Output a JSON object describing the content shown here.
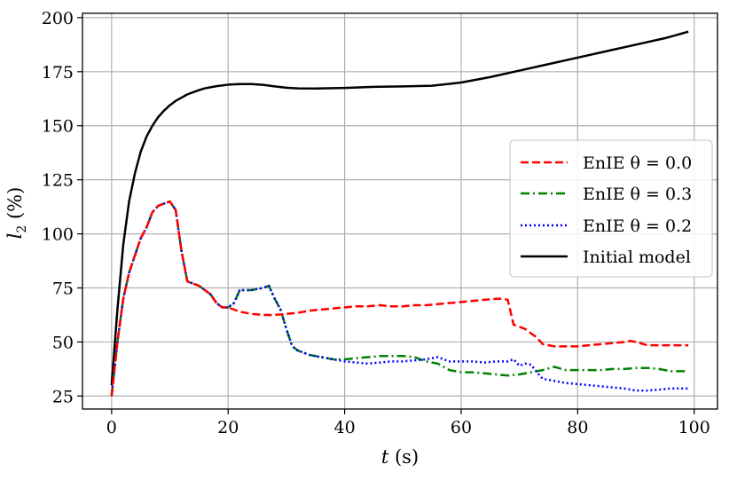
{
  "chart_data": {
    "type": "line",
    "xlabel": "t (s)",
    "ylabel": "l2 (%)",
    "xlim": [
      -5,
      104
    ],
    "ylim": [
      19,
      202
    ],
    "xticks": [
      0,
      20,
      40,
      60,
      80,
      100
    ],
    "yticks": [
      25,
      50,
      75,
      100,
      125,
      150,
      175,
      200
    ],
    "xtick_labels": [
      "0",
      "20",
      "40",
      "60",
      "80",
      "100"
    ],
    "ytick_labels": [
      "25",
      "50",
      "75",
      "100",
      "125",
      "150",
      "175",
      "200"
    ],
    "grid": true,
    "legend_position": "center-right",
    "series": [
      {
        "name": "EnIE θ = 0.0",
        "color": "#ff0000",
        "dash": "dashed",
        "x": [
          0,
          1,
          2,
          3,
          4,
          5,
          6,
          7,
          8,
          9,
          10,
          11,
          12,
          13,
          14,
          15,
          16,
          17,
          18,
          19,
          20,
          21,
          22,
          24,
          26,
          28,
          30,
          32,
          34,
          36,
          38,
          40,
          42,
          44,
          46,
          48,
          50,
          52,
          54,
          56,
          58,
          60,
          62,
          64,
          66,
          67,
          68,
          69,
          70,
          71,
          72,
          73,
          74,
          75,
          76,
          78,
          80,
          82,
          84,
          86,
          88,
          89,
          90,
          92,
          94,
          96,
          99
        ],
        "y": [
          25,
          50,
          70,
          82,
          90,
          98,
          103,
          110,
          113,
          114,
          115,
          111,
          92,
          78,
          77,
          76,
          74,
          72,
          68,
          66,
          66,
          65,
          64,
          63,
          62.5,
          62.5,
          63,
          63.5,
          64.5,
          65,
          65.5,
          66,
          66.5,
          66.5,
          67,
          66.5,
          66.5,
          67,
          67,
          67.5,
          68,
          68.5,
          69,
          69.5,
          70,
          70,
          69.5,
          58,
          57,
          56,
          54,
          52,
          49,
          48.5,
          48,
          48,
          48,
          48.5,
          49,
          49.5,
          50,
          50.5,
          50,
          48.5,
          48.5,
          48.5,
          48.5
        ]
      },
      {
        "name": "EnIE θ = 0.3",
        "color": "#008000",
        "dash": "dashdot",
        "x": [
          0,
          1,
          2,
          3,
          4,
          5,
          6,
          7,
          8,
          9,
          10,
          11,
          12,
          13,
          14,
          15,
          16,
          17,
          18,
          19,
          20,
          21,
          22,
          24,
          26,
          27,
          28,
          29,
          30,
          31,
          32,
          34,
          36,
          38,
          40,
          42,
          44,
          46,
          48,
          50,
          52,
          54,
          56,
          58,
          60,
          62,
          64,
          66,
          68,
          70,
          72,
          74,
          76,
          78,
          80,
          82,
          84,
          86,
          88,
          90,
          92,
          94,
          96,
          99
        ],
        "y": [
          25,
          50,
          70,
          82,
          90,
          98,
          103,
          110,
          113,
          114,
          115,
          111,
          92,
          78,
          77,
          76,
          74,
          72,
          68,
          66,
          66,
          68,
          74,
          74,
          75,
          76,
          70,
          65,
          56,
          48,
          46,
          44,
          43,
          42,
          42,
          42.5,
          43,
          43.5,
          43.5,
          43.5,
          43,
          41,
          40,
          37,
          36,
          36,
          35.5,
          35,
          34.5,
          35,
          36,
          37,
          38.5,
          37,
          37,
          37,
          37,
          37.5,
          37.5,
          38,
          38,
          37.5,
          36.5,
          36.5
        ]
      },
      {
        "name": "EnIE θ = 0.2",
        "color": "#0000ff",
        "dash": "dotted",
        "x": [
          0,
          1,
          2,
          3,
          4,
          5,
          6,
          7,
          8,
          9,
          10,
          11,
          12,
          13,
          14,
          15,
          16,
          17,
          18,
          19,
          20,
          21,
          22,
          24,
          26,
          27,
          28,
          29,
          30,
          31,
          32,
          34,
          36,
          38,
          40,
          42,
          44,
          46,
          48,
          50,
          52,
          54,
          56,
          57,
          58,
          60,
          62,
          64,
          66,
          68,
          69,
          70,
          71,
          72,
          73,
          74,
          76,
          78,
          80,
          82,
          84,
          86,
          88,
          90,
          92,
          94,
          96,
          99
        ],
        "y": [
          25,
          50,
          70,
          82,
          90,
          98,
          103,
          110,
          113,
          114,
          115,
          111,
          92,
          78,
          77,
          76,
          74,
          72,
          68,
          66,
          66,
          68,
          74,
          74,
          75,
          76,
          70,
          65,
          56,
          48,
          46,
          44,
          43,
          42,
          41,
          40.5,
          40,
          40.5,
          41,
          41,
          41.5,
          42,
          43,
          42,
          41,
          41,
          41,
          40.5,
          41,
          41,
          42,
          39,
          40,
          39.5,
          36,
          33,
          32,
          31,
          30.5,
          30,
          29.5,
          29,
          28.5,
          27.5,
          27.5,
          28,
          28.5,
          28.5
        ]
      },
      {
        "name": "Initial model",
        "color": "#000000",
        "dash": "solid",
        "x": [
          0,
          1,
          2,
          3,
          4,
          5,
          6,
          7,
          8,
          9,
          10,
          11,
          12,
          13,
          14,
          15,
          16,
          18,
          20,
          22,
          24,
          26,
          28,
          30,
          32,
          35,
          40,
          45,
          50,
          55,
          60,
          65,
          70,
          75,
          80,
          85,
          90,
          95,
          99
        ],
        "y": [
          30,
          65,
          95,
          115,
          128,
          138,
          145,
          150,
          154,
          157,
          159.5,
          161.5,
          163,
          164.5,
          165.5,
          166.5,
          167.3,
          168.3,
          169,
          169.3,
          169.3,
          168.9,
          168.2,
          167.6,
          167.3,
          167.2,
          167.5,
          168,
          168.2,
          168.5,
          170,
          172.5,
          175.5,
          178.5,
          181.5,
          184.5,
          187.5,
          190.5,
          193.5
        ]
      }
    ],
    "legend_entries": [
      "EnIE θ = 0.0",
      "EnIE θ = 0.3",
      "EnIE θ = 0.2",
      "Initial model"
    ]
  }
}
